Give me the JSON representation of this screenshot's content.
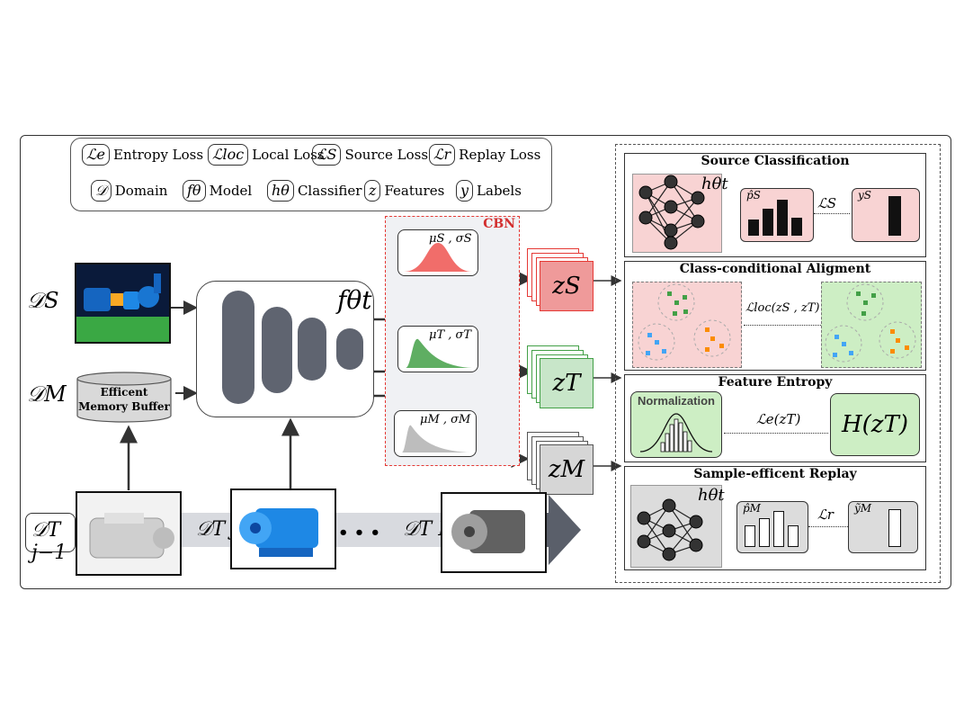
{
  "legend": {
    "items": [
      {
        "symbol": "ℒe",
        "label": "Entropy Loss"
      },
      {
        "symbol": "ℒloc",
        "label": "Local Loss"
      },
      {
        "symbol": "ℒS",
        "label": "Source Loss"
      },
      {
        "symbol": "ℒr",
        "label": "Replay Loss"
      },
      {
        "symbol": "𝒟",
        "label": "Domain"
      },
      {
        "symbol": "fθ",
        "label": "Model"
      },
      {
        "symbol": "hθ",
        "label": "Classifier"
      },
      {
        "symbol": "z",
        "label": "Features"
      },
      {
        "symbol": "y",
        "label": "Labels"
      }
    ]
  },
  "inputs": {
    "ds_label": "𝒟S",
    "dm_label": "𝒟M",
    "memory_buffer": "Efficent Memory Buffer"
  },
  "model": {
    "label": "fθt"
  },
  "cbn": {
    "title": "CBN",
    "source_stats": "μS , σS",
    "target_stats": "μT , σT",
    "memory_stats": "μM , σM"
  },
  "features": {
    "zs": "zS",
    "zt": "zT",
    "zm": "zM"
  },
  "stream": {
    "dt_prev": "𝒟T j−1",
    "dt_cur": "𝒟T j",
    "ellipsis": "• • •",
    "dt_last": "𝒟T K"
  },
  "panels": {
    "source_classification": {
      "title": "Source Classification",
      "classifier": "hθt",
      "pred": "p̂S",
      "loss": "ℒS",
      "label": "yS"
    },
    "class_alignment": {
      "title": "Class-conditional Aligment",
      "loss": "ℒloc(zS , zT)"
    },
    "feature_entropy": {
      "title": "Feature Entropy",
      "normalization": "Normalization",
      "loss": "ℒe(zT)",
      "entropy": "H(zT)"
    },
    "replay": {
      "title": "Sample-efficent Replay",
      "classifier": "hθt",
      "pred": "p̂M",
      "loss": "ℒr",
      "label": "ỹM"
    }
  },
  "colors": {
    "source": "#e53935",
    "target": "#43a047",
    "memory": "#9e9e9e",
    "pink_bg": "#f8d3d3",
    "green_bg": "#cdeec4",
    "gray_bg": "#dcdcdc"
  }
}
